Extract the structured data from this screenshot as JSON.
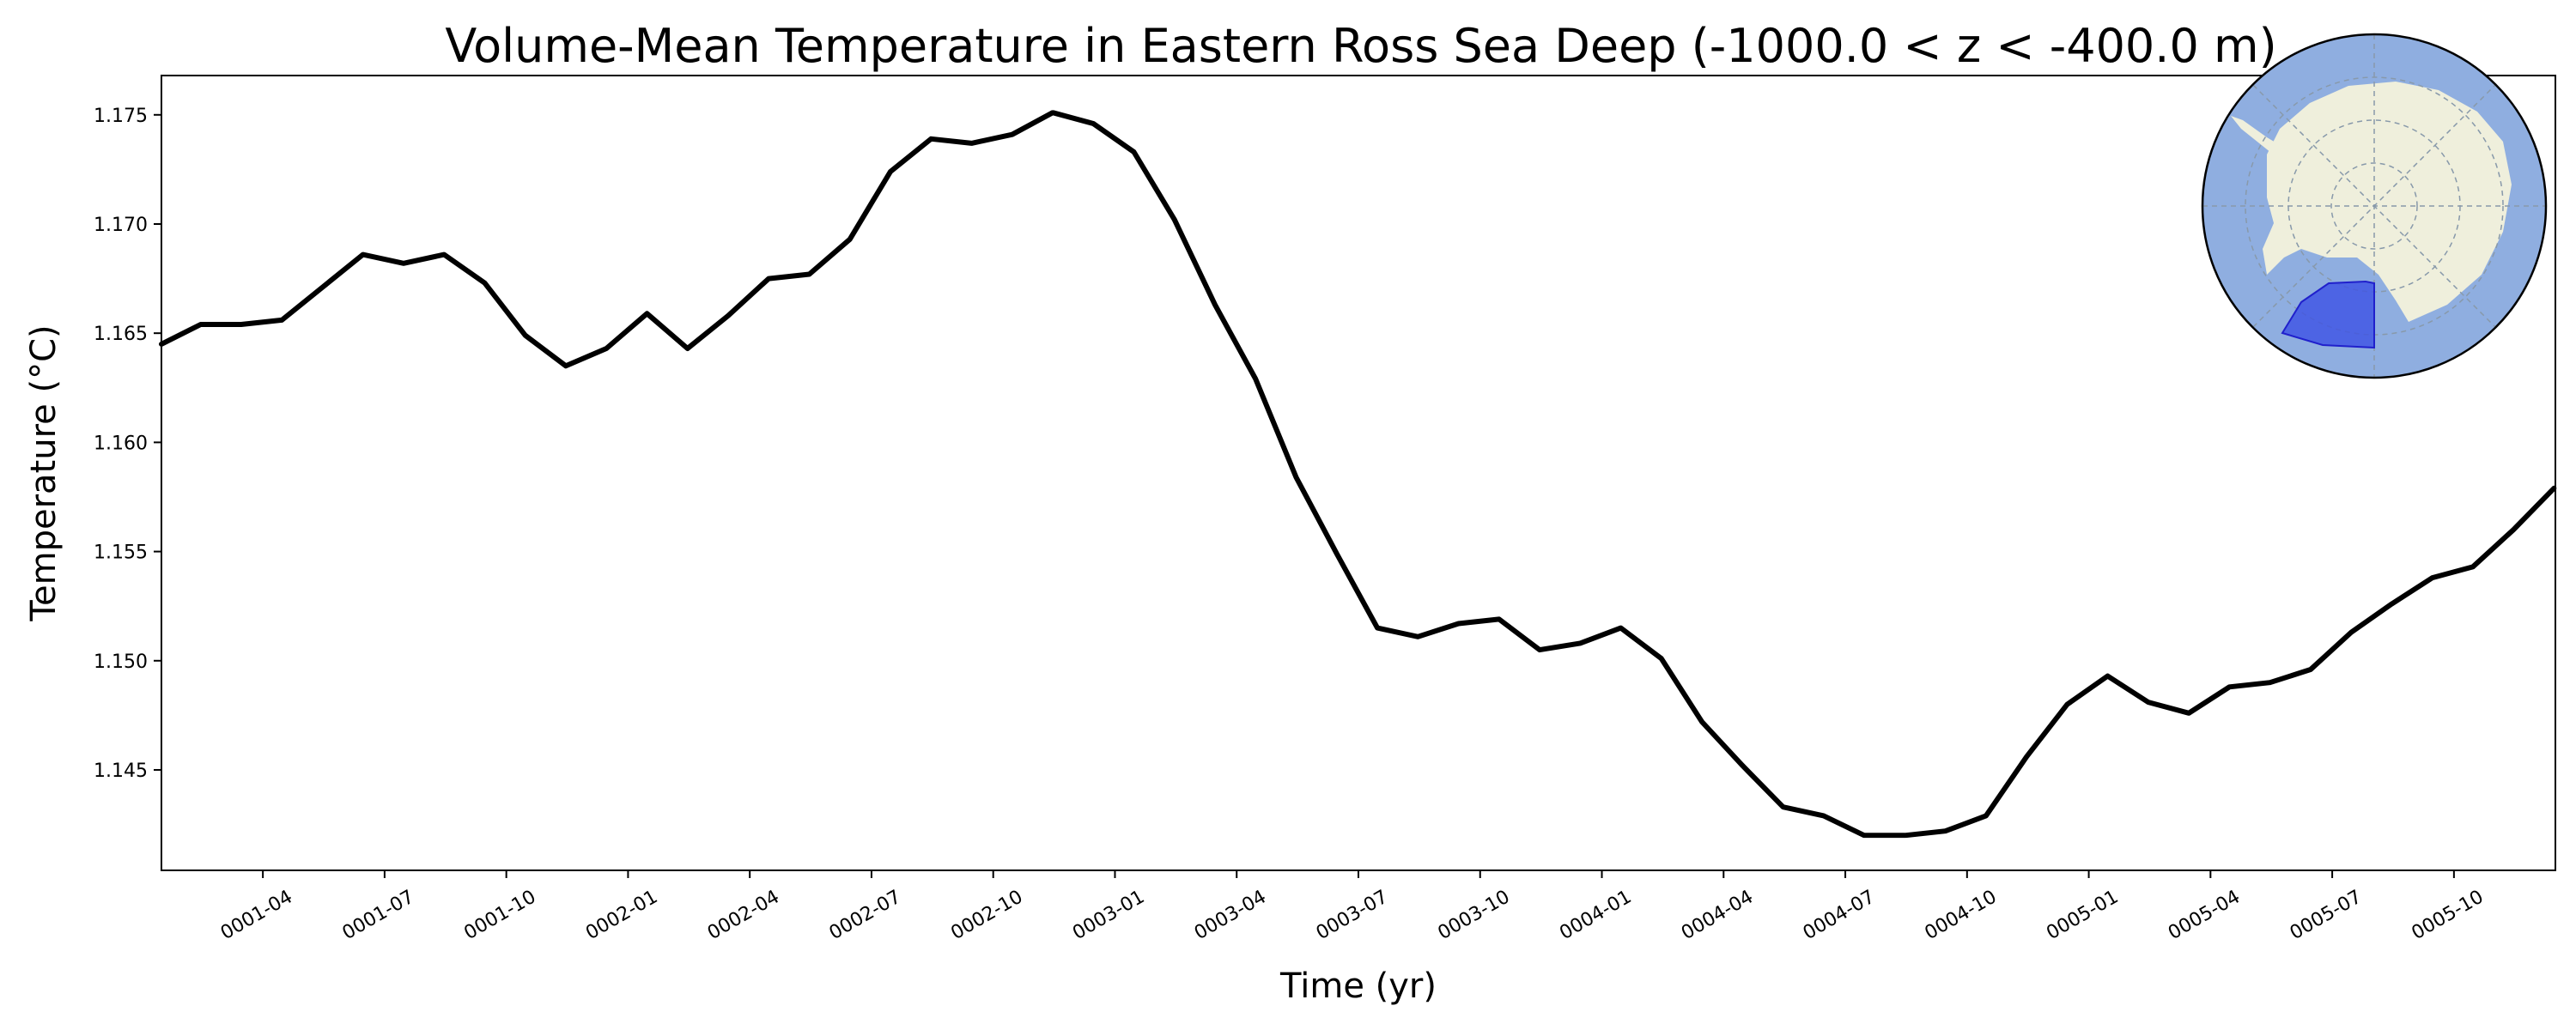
{
  "chart_data": {
    "type": "line",
    "title": "Volume-Mean Temperature in Eastern Ross Sea Deep (-1000.0 < z < -400.0 m)",
    "xlabel": "Time (yr)",
    "ylabel": "Temperature (°C)",
    "xlim": [
      "0001-01-16",
      "0005-12-16"
    ],
    "ylim": [
      1.1404,
      1.1768
    ],
    "grid": false,
    "legend": false,
    "x_ticks": [
      "0001-04",
      "0001-07",
      "0001-10",
      "0002-01",
      "0002-04",
      "0002-07",
      "0002-10",
      "0003-01",
      "0003-04",
      "0003-07",
      "0003-10",
      "0004-01",
      "0004-04",
      "0004-07",
      "0004-10",
      "0005-01",
      "0005-04",
      "0005-07",
      "0005-10"
    ],
    "y_ticks": [
      "1.145",
      "1.150",
      "1.155",
      "1.160",
      "1.165",
      "1.170",
      "1.175"
    ],
    "series": [
      {
        "color": "#000000",
        "x": [
          "0001-01",
          "0001-02",
          "0001-03",
          "0001-04",
          "0001-05",
          "0001-06",
          "0001-07",
          "0001-08",
          "0001-09",
          "0001-10",
          "0001-11",
          "0001-12",
          "0002-01",
          "0002-02",
          "0002-03",
          "0002-04",
          "0002-05",
          "0002-06",
          "0002-07",
          "0002-08",
          "0002-09",
          "0002-10",
          "0002-11",
          "0002-12",
          "0003-01",
          "0003-02",
          "0003-03",
          "0003-04",
          "0003-05",
          "0003-06",
          "0003-07",
          "0003-08",
          "0003-09",
          "0003-10",
          "0003-11",
          "0003-12",
          "0004-01",
          "0004-02",
          "0004-03",
          "0004-04",
          "0004-05",
          "0004-06",
          "0004-07",
          "0004-08",
          "0004-09",
          "0004-10",
          "0004-11",
          "0004-12",
          "0005-01",
          "0005-02",
          "0005-03",
          "0005-04",
          "0005-05",
          "0005-06",
          "0005-07",
          "0005-08",
          "0005-09",
          "0005-10",
          "0005-11",
          "0005-12"
        ],
        "y": [
          1.1645,
          1.1654,
          1.1654,
          1.1656,
          1.1671,
          1.1686,
          1.1682,
          1.1686,
          1.1673,
          1.1649,
          1.1635,
          1.1643,
          1.1659,
          1.1643,
          1.1658,
          1.1675,
          1.1677,
          1.1693,
          1.1724,
          1.1739,
          1.1737,
          1.1741,
          1.1751,
          1.1746,
          1.1733,
          1.1702,
          1.1663,
          1.1629,
          1.1584,
          1.1549,
          1.1515,
          1.1511,
          1.1517,
          1.1519,
          1.1505,
          1.1508,
          1.1515,
          1.1501,
          1.1472,
          1.1452,
          1.1433,
          1.1429,
          1.142,
          1.142,
          1.1422,
          1.1429,
          1.1456,
          1.148,
          1.1493,
          1.1481,
          1.1476,
          1.1488,
          1.149,
          1.1496,
          1.1513,
          1.1526,
          1.1538,
          1.1543,
          1.156,
          1.1579
        ]
      }
    ],
    "inset_map": {
      "region": "Antarctica",
      "colors": {
        "ocean": "#8faee0",
        "land": "#efefdc",
        "region": "#3b4fe6",
        "region_edge": "#2020cc"
      }
    }
  }
}
